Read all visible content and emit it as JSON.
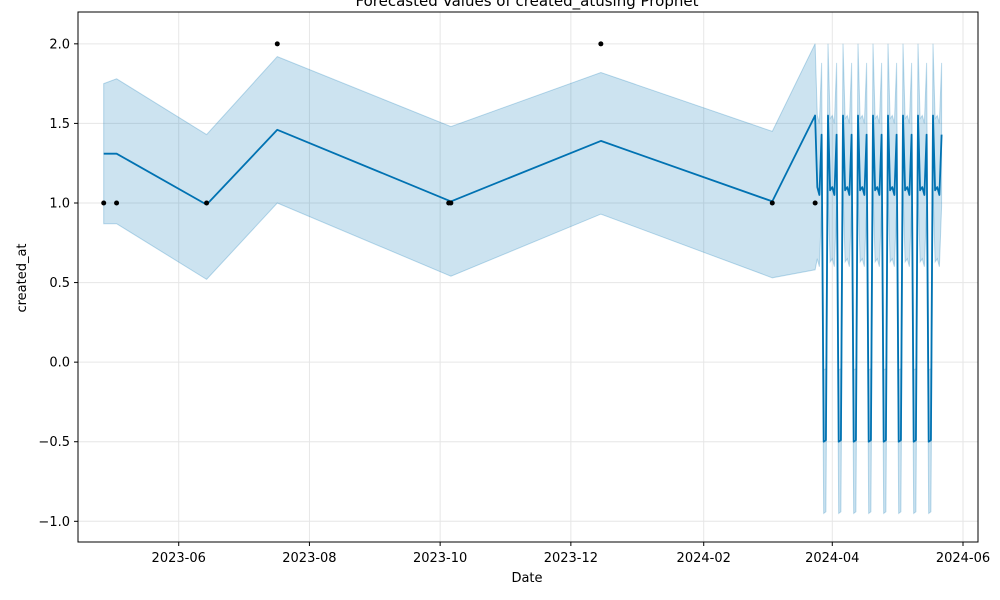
{
  "chart_data": {
    "type": "line",
    "title": "Forecasted Values of created_atusing Prophet",
    "xlabel": "Date",
    "ylabel": "created_at",
    "x_range": [
      "2023-04-15",
      "2024-06-08"
    ],
    "ylim": [
      -1.13,
      2.2
    ],
    "x_ticks": [
      "2023-06",
      "2023-08",
      "2023-10",
      "2023-12",
      "2024-02",
      "2024-04",
      "2024-06"
    ],
    "y_ticks": [
      "−1.0",
      "−0.5",
      "0.0",
      "0.5",
      "1.0",
      "1.5",
      "2.0"
    ],
    "grid": true,
    "colors": {
      "forecast_line": "#0072B2",
      "uncertainty_band": "#0072B2",
      "observed_points": "#000000",
      "grid": "#e6e6e6"
    },
    "observed": [
      {
        "x": "2023-04-27",
        "y": 1
      },
      {
        "x": "2023-05-03",
        "y": 1
      },
      {
        "x": "2023-06-14",
        "y": 1
      },
      {
        "x": "2023-07-17",
        "y": 2
      },
      {
        "x": "2023-10-05",
        "y": 1
      },
      {
        "x": "2023-10-06",
        "y": 1
      },
      {
        "x": "2023-12-15",
        "y": 2
      },
      {
        "x": "2024-03-04",
        "y": 1
      },
      {
        "x": "2024-03-24",
        "y": 1
      }
    ],
    "forecast": {
      "x": [
        "2023-04-27",
        "2023-05-03",
        "2023-06-14",
        "2023-07-17",
        "2023-10-06",
        "2023-12-15",
        "2024-03-04",
        "2024-03-24"
      ],
      "yhat": [
        1.31,
        1.31,
        0.99,
        1.46,
        1.01,
        1.39,
        1.01,
        1.55
      ],
      "yhat_lower": [
        0.87,
        0.87,
        0.52,
        1.0,
        0.54,
        0.93,
        0.53,
        0.58
      ],
      "yhat_upper": [
        1.75,
        1.78,
        1.43,
        1.92,
        1.48,
        1.82,
        1.45,
        2.0
      ]
    },
    "weekly_forecast": {
      "start": "2024-03-25",
      "end": "2024-05-22",
      "weekly_pattern": [
        1.1,
        1.05,
        1.43,
        -0.5,
        -0.49,
        1.55,
        1.08
      ],
      "band_width": 0.45
    }
  }
}
